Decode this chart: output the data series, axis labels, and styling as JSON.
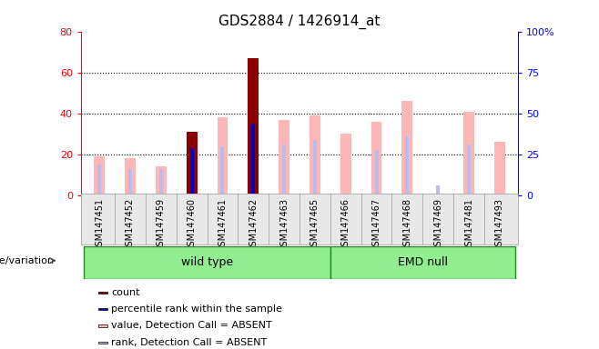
{
  "title": "GDS2884 / 1426914_at",
  "samples": [
    "GSM147451",
    "GSM147452",
    "GSM147459",
    "GSM147460",
    "GSM147461",
    "GSM147462",
    "GSM147463",
    "GSM147465",
    "GSM147466",
    "GSM147467",
    "GSM147468",
    "GSM147469",
    "GSM147481",
    "GSM147493"
  ],
  "wt_count": 8,
  "emd_count": 6,
  "count": [
    0,
    0,
    0,
    31,
    0,
    67,
    0,
    0,
    0,
    0,
    0,
    0,
    0,
    0
  ],
  "percentile_rank": [
    0,
    0,
    0,
    23,
    0,
    35,
    0,
    0,
    0,
    0,
    0,
    0,
    0,
    0
  ],
  "value_absent": [
    19,
    18,
    14,
    0,
    38,
    0,
    37,
    39,
    30,
    36,
    46,
    0,
    41,
    26
  ],
  "rank_absent": [
    15,
    13,
    13,
    0,
    24,
    0,
    25,
    27,
    0,
    22,
    29,
    5,
    25,
    0
  ],
  "ylim_left": [
    0,
    80
  ],
  "ylim_right": [
    0,
    100
  ],
  "yticks_left": [
    0,
    20,
    40,
    60,
    80
  ],
  "yticks_right": [
    0,
    25,
    50,
    75,
    100
  ],
  "color_count": "#8B0000",
  "color_rank": "#0000CC",
  "color_value_absent": "#FFB6B6",
  "color_rank_absent": "#BBBBEE",
  "bar_width": 0.35,
  "thin_bar_width": 0.12,
  "group_color": "#90EE90",
  "group_border": "#228B22",
  "bg_color": "#E8E8E8",
  "genotype_label": "genotype/variation"
}
